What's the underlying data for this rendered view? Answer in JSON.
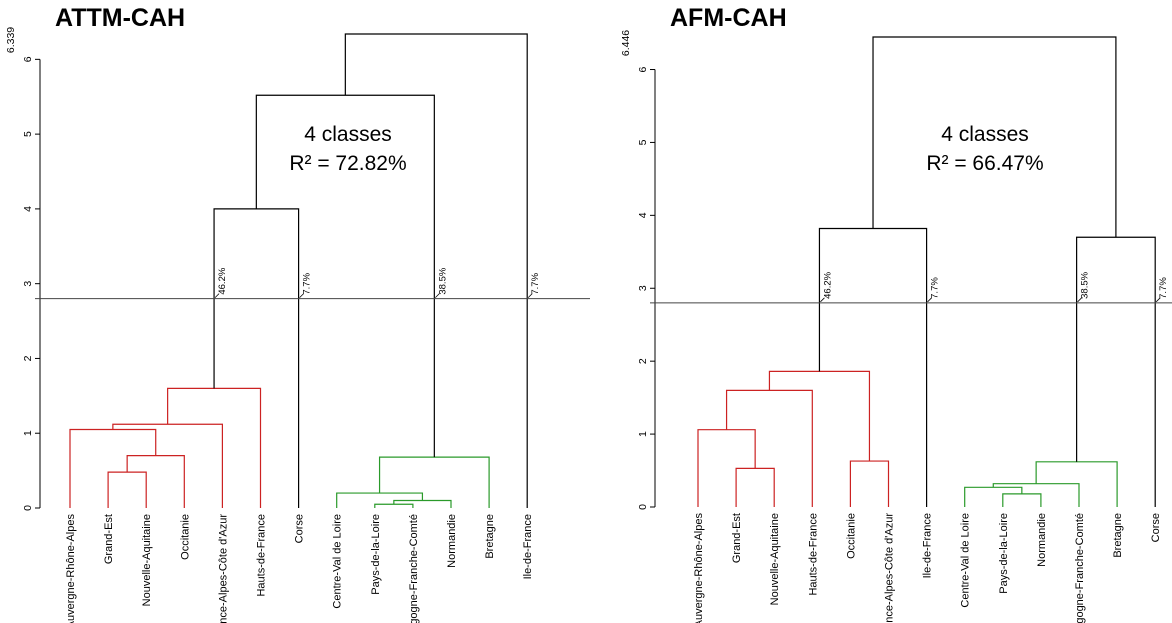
{
  "chart_data": [
    {
      "type": "dendrogram",
      "title": "ATTM-CAH",
      "ylim": [
        0,
        6.339
      ],
      "top_tick_label": "6.339",
      "yticks": [
        0,
        1,
        2,
        3,
        4,
        5,
        6
      ],
      "cut_height": 2.8,
      "annotation": {
        "line1": "4 classes",
        "line2": "R² = 72.82%"
      },
      "leaves": [
        "Auvergne-Rhône-Alpes",
        "Grand-Est",
        "Nouvelle-Aquitaine",
        "Occitanie",
        "Provence-Alpes-Côte d'Azur",
        "Hauts-de-France",
        "Corse",
        "Centre-Val de Loire",
        "Pays-de-la-Loire",
        "Bourgogne-Franche-Comté",
        "Normandie",
        "Bretagne",
        "Ile-de-France"
      ],
      "merges": [
        {
          "left": 1,
          "right": 2,
          "height": 0.48,
          "color": "#cc2222"
        },
        {
          "left": 8,
          "right": 9,
          "height": 0.05,
          "color": "#2a9a2a"
        },
        {
          "left": "m1",
          "right": 3,
          "height": 0.7,
          "color": "#cc2222"
        },
        {
          "left": "m2",
          "right": 10,
          "height": 0.1,
          "color": "#2a9a2a"
        },
        {
          "left": 0,
          "right": "m3",
          "height": 1.05,
          "color": "#cc2222"
        },
        {
          "left": 7,
          "right": "m4",
          "height": 0.2,
          "color": "#2a9a2a"
        },
        {
          "left": "m5",
          "right": 4,
          "height": 1.12,
          "color": "#cc2222"
        },
        {
          "left": "m6",
          "right": 11,
          "height": 0.68,
          "color": "#2a9a2a"
        },
        {
          "left": "m7",
          "right": 5,
          "height": 1.6,
          "color": "#cc2222"
        },
        {
          "left": "m9",
          "right": 6,
          "height": 4.0,
          "color": "#000000"
        },
        {
          "left": "m10",
          "right": "m8",
          "height": 5.52,
          "color": "#000000"
        },
        {
          "left": "m11",
          "right": 12,
          "height": 6.339,
          "color": "#000000"
        }
      ],
      "class_labels": [
        {
          "node": "m9",
          "label": "46.2%"
        },
        {
          "node": 6,
          "label": "7.7%"
        },
        {
          "node": "m8",
          "label": "38.5%"
        },
        {
          "node": 12,
          "label": "7.7%"
        }
      ]
    },
    {
      "type": "dendrogram",
      "title": "AFM-CAH",
      "ylim": [
        0,
        6.446
      ],
      "top_tick_label": "6.446",
      "yticks": [
        0,
        1,
        2,
        3,
        4,
        5,
        6
      ],
      "cut_height": 2.8,
      "annotation": {
        "line1": "4 classes",
        "line2": "R² = 66.47%"
      },
      "leaves": [
        "Auvergne-Rhône-Alpes",
        "Grand-Est",
        "Nouvelle-Aquitaine",
        "Hauts-de-France",
        "Occitanie",
        "Provence-Alpes-Côte d'Azur",
        "Ile-de-France",
        "Centre-Val de Loire",
        "Pays-de-la-Loire",
        "Normandie",
        "Bourgogne-Franche-Comté",
        "Bretagne",
        "Corse"
      ],
      "merges": [
        {
          "left": 8,
          "right": 9,
          "height": 0.18,
          "color": "#2a9a2a"
        },
        {
          "left": 7,
          "right": "m1",
          "height": 0.27,
          "color": "#2a9a2a"
        },
        {
          "left": "m2",
          "right": 10,
          "height": 0.32,
          "color": "#2a9a2a"
        },
        {
          "left": 1,
          "right": 2,
          "height": 0.53,
          "color": "#cc2222"
        },
        {
          "left": "m3",
          "right": 11,
          "height": 0.62,
          "color": "#2a9a2a"
        },
        {
          "left": 4,
          "right": 5,
          "height": 0.63,
          "color": "#cc2222"
        },
        {
          "left": 0,
          "right": "m4",
          "height": 1.06,
          "color": "#cc2222"
        },
        {
          "left": "m7",
          "right": 3,
          "height": 1.6,
          "color": "#cc2222"
        },
        {
          "left": "m8",
          "right": "m6",
          "height": 1.86,
          "color": "#cc2222"
        },
        {
          "left": "m5",
          "right": 12,
          "height": 3.7,
          "color": "#000000"
        },
        {
          "left": "m9",
          "right": 6,
          "height": 3.82,
          "color": "#000000"
        },
        {
          "left": "m11",
          "right": "m10",
          "height": 6.446,
          "color": "#000000"
        }
      ],
      "class_labels": [
        {
          "node": "m9",
          "label": "46.2%"
        },
        {
          "node": 6,
          "label": "7.7%"
        },
        {
          "node": "m5",
          "label": "38.5%"
        },
        {
          "node": 12,
          "label": "7.7%"
        }
      ]
    }
  ]
}
